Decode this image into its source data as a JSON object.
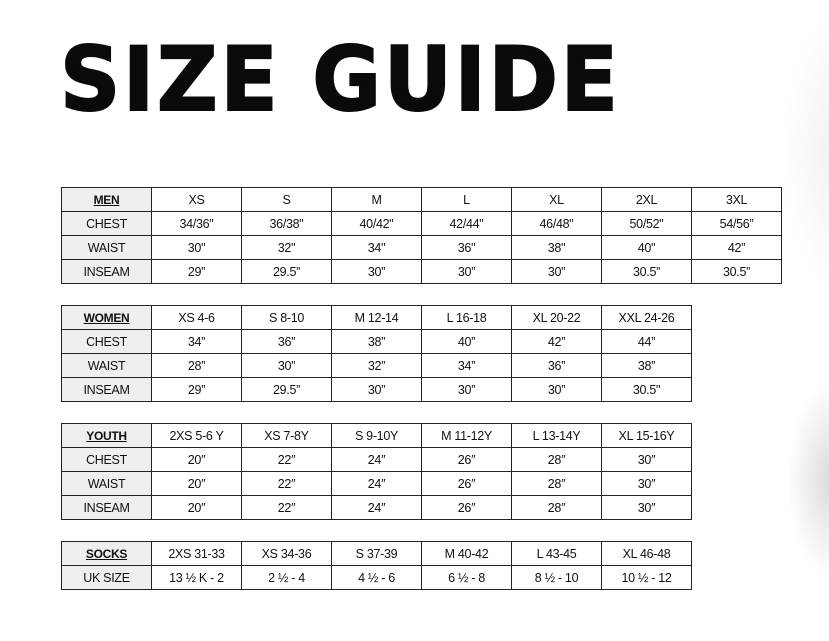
{
  "title": "SIZE GUIDE",
  "tables": [
    {
      "name": "men",
      "header": [
        "MEN",
        "XS",
        "S",
        "M",
        "L",
        "XL",
        "2XL",
        "3XL"
      ],
      "rows": [
        [
          "CHEST",
          "34/36\"",
          "36/38\"",
          "40/42\"",
          "42/44\"",
          "46/48\"",
          "50/52\"",
          "54/56”"
        ],
        [
          "WAIST",
          "30\"",
          "32\"",
          "34\"",
          "36\"",
          "38\"",
          "40\"",
          "42”"
        ],
        [
          "INSEAM",
          "29”",
          "29.5”",
          "30”",
          "30”",
          "30”",
          "30.5”",
          "30.5”"
        ]
      ]
    },
    {
      "name": "women",
      "header": [
        "WOMEN",
        "XS 4-6",
        "S 8-10",
        "M 12-14",
        "L 16-18",
        "XL 20-22",
        "XXL 24-26"
      ],
      "rows": [
        [
          "CHEST",
          "34”",
          "36”",
          "38”",
          "40”",
          "42”",
          "44”"
        ],
        [
          "WAIST",
          "28”",
          "30”",
          "32”",
          "34”",
          "36”",
          "38”"
        ],
        [
          "INSEAM",
          "29”",
          "29.5”",
          "30”",
          "30”",
          "30”",
          "30.5\""
        ]
      ]
    },
    {
      "name": "youth",
      "header": [
        "YOUTH",
        "2XS 5-6 Y",
        "XS 7-8Y",
        "S 9-10Y",
        "M 11-12Y",
        "L 13-14Y",
        "XL 15-16Y"
      ],
      "rows": [
        [
          "CHEST",
          "20″",
          "22″",
          "24″",
          "26″",
          "28″",
          "30″"
        ],
        [
          "WAIST",
          "20″",
          "22″",
          "24″",
          "26″",
          "28″",
          "30″"
        ],
        [
          "INSEAM",
          "20″",
          "22″",
          "24″",
          "26″",
          "28″",
          "30″"
        ]
      ]
    },
    {
      "name": "socks",
      "header": [
        "SOCKS",
        "2XS 31-33",
        "XS 34-36",
        "S 37-39",
        "M 40-42",
        "L 43-45",
        "XL 46-48"
      ],
      "rows": [
        [
          "UK SIZE",
          "13 ½ K - 2",
          "2 ½ - 4",
          "4 ½ - 6",
          "6 ½ - 8",
          "8 ½ - 10",
          "10 ½ - 12"
        ]
      ]
    }
  ]
}
